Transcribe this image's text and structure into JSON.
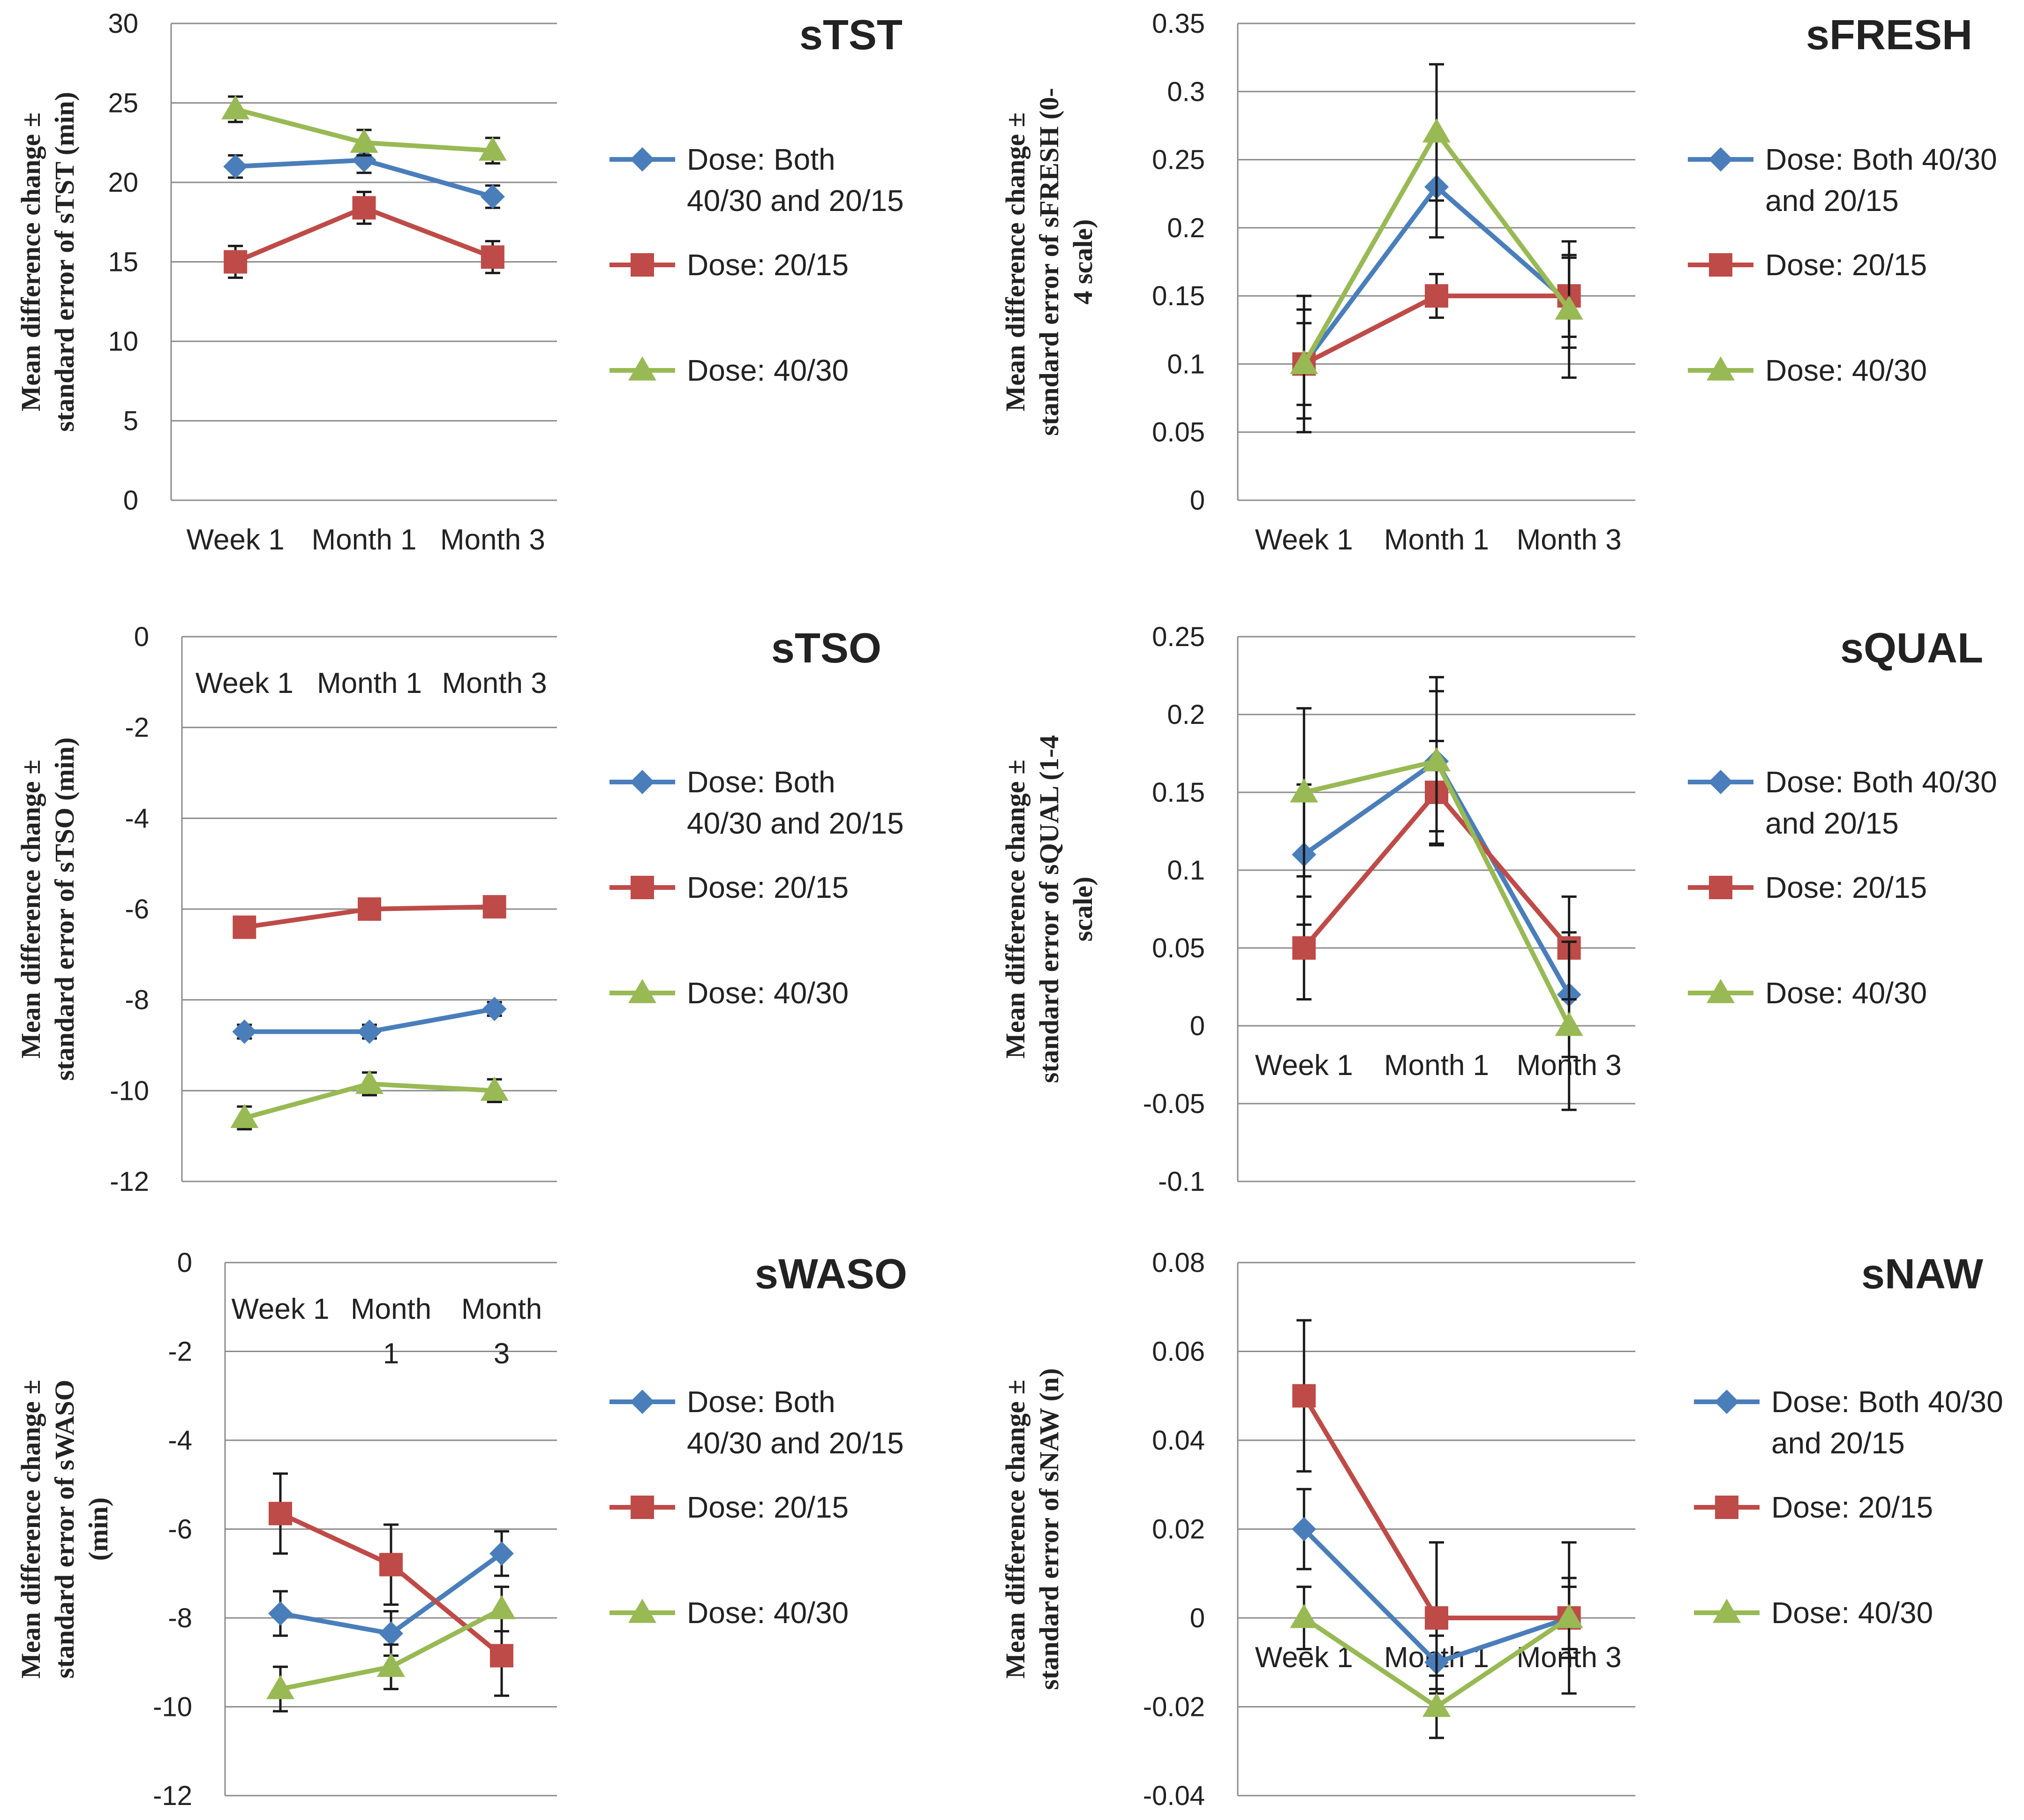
{
  "figure": {
    "series_colors": {
      "both": "#4a7ebb",
      "low": "#be4b48",
      "high": "#98b954"
    },
    "marker_names": {
      "both": "diamond",
      "low": "square",
      "high": "triangle"
    }
  },
  "chart_data": [
    {
      "type": "line",
      "title": "sTST",
      "ylabel_lines": [
        "Mean difference change ±",
        "standard error of sTST (min)"
      ],
      "categories": [
        "Week 1",
        "Month 1",
        "Month 3"
      ],
      "category_lines": [
        [
          "Week 1"
        ],
        [
          "Month 1"
        ],
        [
          "Month 3"
        ]
      ],
      "ylim": [
        0,
        30
      ],
      "yticks": [
        0,
        5,
        10,
        15,
        20,
        25,
        30
      ],
      "ytick_labels": [
        "0",
        "5",
        "10",
        "15",
        "20",
        "25",
        "30"
      ],
      "xlabels_at_top": false,
      "series": [
        {
          "name": "Dose: Both 40/30 and 20/15",
          "legend_lines": [
            "Dose: Both",
            "40/30 and 20/15"
          ],
          "key": "both",
          "values": [
            21.0,
            21.4,
            19.1
          ],
          "errors": [
            0.7,
            0.8,
            0.7
          ]
        },
        {
          "name": "Dose: 20/15",
          "legend_lines": [
            "Dose: 20/15"
          ],
          "key": "low",
          "values": [
            15.0,
            18.4,
            15.3
          ],
          "errors": [
            1.0,
            1.0,
            1.0
          ]
        },
        {
          "name": "Dose: 40/30",
          "legend_lines": [
            "Dose: 40/30"
          ],
          "key": "high",
          "values": [
            24.6,
            22.5,
            22.0
          ],
          "errors": [
            0.8,
            0.8,
            0.8
          ]
        }
      ]
    },
    {
      "type": "line",
      "title": "sFRESH",
      "ylabel_lines": [
        "Mean difference change ±",
        "standard error of sFRESH (0-",
        "4 scale)"
      ],
      "categories": [
        "Week 1",
        "Month 1",
        "Month 3"
      ],
      "category_lines": [
        [
          "Week 1"
        ],
        [
          "Month 1"
        ],
        [
          "Month 3"
        ]
      ],
      "ylim": [
        0,
        0.35
      ],
      "yticks": [
        0,
        0.05,
        0.1,
        0.15,
        0.2,
        0.25,
        0.3,
        0.35
      ],
      "ytick_labels": [
        "0",
        "0.05",
        "0.1",
        "0.15",
        "0.2",
        "0.25",
        "0.3",
        "0.35"
      ],
      "xlabels_at_top": false,
      "series": [
        {
          "name": "Dose: Both 40/30 and 20/15",
          "legend_lines": [
            "Dose: Both 40/30",
            "and 20/15"
          ],
          "key": "both",
          "values": [
            0.1,
            0.23,
            0.145
          ],
          "errors": [
            0.04,
            0.037,
            0.033
          ]
        },
        {
          "name": "Dose: 20/15",
          "legend_lines": [
            "Dose: 20/15"
          ],
          "key": "low",
          "values": [
            0.1,
            0.15,
            0.15
          ],
          "errors": [
            0.03,
            0.016,
            0.03
          ]
        },
        {
          "name": "Dose: 40/30",
          "legend_lines": [
            "Dose: 40/30"
          ],
          "key": "high",
          "values": [
            0.1,
            0.27,
            0.14
          ],
          "errors": [
            0.05,
            0.05,
            0.05
          ]
        }
      ]
    },
    {
      "type": "line",
      "title": "sTSO",
      "ylabel_lines": [
        "Mean difference change ±",
        "standard error of sTSO (min)"
      ],
      "categories": [
        "Week 1",
        "Month 1",
        "Month 3"
      ],
      "category_lines": [
        [
          "Week 1"
        ],
        [
          "Month 1"
        ],
        [
          "Month 3"
        ]
      ],
      "ylim": [
        -12,
        0
      ],
      "yticks": [
        -12,
        -10,
        -8,
        -6,
        -4,
        -2,
        0
      ],
      "ytick_labels": [
        "-12",
        "-10",
        "-8",
        "-6",
        "-4",
        "-2",
        "0"
      ],
      "xlabels_at_top": true,
      "series": [
        {
          "name": "Dose: Both 40/30 and 20/15",
          "legend_lines": [
            "Dose: Both",
            "40/30 and 20/15"
          ],
          "key": "both",
          "values": [
            -8.7,
            -8.7,
            -8.2
          ],
          "errors": [
            0.15,
            0.15,
            0.15
          ]
        },
        {
          "name": "Dose: 20/15",
          "legend_lines": [
            "Dose: 20/15"
          ],
          "key": "low",
          "values": [
            -6.4,
            -6.0,
            -5.95
          ],
          "errors": [
            0.15,
            0.15,
            0.15
          ]
        },
        {
          "name": "Dose: 40/30",
          "legend_lines": [
            "Dose: 40/30"
          ],
          "key": "high",
          "values": [
            -10.6,
            -9.85,
            -10.0
          ],
          "errors": [
            0.25,
            0.25,
            0.25
          ]
        }
      ]
    },
    {
      "type": "line",
      "title": "sQUAL",
      "ylabel_lines": [
        "Mean difference change ±",
        "standard error of sQUAL (1-4",
        "scale)"
      ],
      "categories": [
        "Week 1",
        "Month 1",
        "Month 3"
      ],
      "category_lines": [
        [
          "Week 1"
        ],
        [
          "Month 1"
        ],
        [
          "Month 3"
        ]
      ],
      "ylim": [
        -0.1,
        0.25
      ],
      "yticks": [
        -0.1,
        -0.05,
        0,
        0.05,
        0.1,
        0.15,
        0.2,
        0.25
      ],
      "ytick_labels": [
        "-0.1",
        "-0.05",
        "0",
        "0.05",
        "0.1",
        "0.15",
        "0.2",
        "0.25"
      ],
      "xlabels_at_top": false,
      "xlabel_value": 0,
      "series": [
        {
          "name": "Dose: Both 40/30 and 20/15",
          "legend_lines": [
            "Dose: Both 40/30",
            "and 20/15"
          ],
          "key": "both",
          "values": [
            0.11,
            0.17,
            0.02
          ],
          "errors": [
            0.045,
            0.045,
            0.04
          ]
        },
        {
          "name": "Dose: 20/15",
          "legend_lines": [
            "Dose: 20/15"
          ],
          "key": "low",
          "values": [
            0.05,
            0.15,
            0.05
          ],
          "errors": [
            0.033,
            0.033,
            0.033
          ]
        },
        {
          "name": "Dose: 40/30",
          "legend_lines": [
            "Dose: 40/30"
          ],
          "key": "high",
          "values": [
            0.15,
            0.17,
            0.0
          ],
          "errors": [
            0.054,
            0.054,
            0.054
          ]
        }
      ]
    },
    {
      "type": "line",
      "title": "sWASO",
      "ylabel_lines": [
        "Mean difference change ±",
        "standard error of sWASO",
        "(min)"
      ],
      "categories": [
        "Week 1",
        "Month 1",
        "Month 3"
      ],
      "category_lines": [
        [
          "Week 1"
        ],
        [
          "Month",
          "1"
        ],
        [
          "Month",
          "3"
        ]
      ],
      "ylim": [
        -12,
        0
      ],
      "yticks": [
        -12,
        -10,
        -8,
        -6,
        -4,
        -2,
        0
      ],
      "ytick_labels": [
        "-12",
        "-10",
        "-8",
        "-6",
        "-4",
        "-2",
        "0"
      ],
      "xlabels_at_top": true,
      "series": [
        {
          "name": "Dose: Both 40/30 and 20/15",
          "legend_lines": [
            "Dose: Both",
            "40/30 and 20/15"
          ],
          "key": "both",
          "values": [
            -7.9,
            -8.35,
            -6.55
          ],
          "errors": [
            0.5,
            0.5,
            0.5
          ]
        },
        {
          "name": "Dose: 20/15",
          "legend_lines": [
            "Dose: 20/15"
          ],
          "key": "low",
          "values": [
            -5.65,
            -6.8,
            -8.85
          ],
          "errors": [
            0.9,
            0.9,
            0.9
          ]
        },
        {
          "name": "Dose: 40/30",
          "legend_lines": [
            "Dose: 40/30"
          ],
          "key": "high",
          "values": [
            -9.6,
            -9.1,
            -7.8
          ],
          "errors": [
            0.5,
            0.5,
            0.5
          ]
        }
      ]
    },
    {
      "type": "line",
      "title": "sNAW",
      "ylabel_lines": [
        "Mean difference change ±",
        "standard error of sNAW (n)"
      ],
      "categories": [
        "Week 1",
        "Month 1",
        "Month 3"
      ],
      "category_lines": [
        [
          "Week 1"
        ],
        [
          "Month 1"
        ],
        [
          "Month 3"
        ]
      ],
      "ylim": [
        -0.04,
        0.08
      ],
      "yticks": [
        -0.04,
        -0.02,
        0,
        0.02,
        0.04,
        0.06,
        0.08
      ],
      "ytick_labels": [
        "-0.04",
        "-0.02",
        "0",
        "0.02",
        "0.04",
        "0.06",
        "0.08"
      ],
      "xlabels_at_top": false,
      "xlabel_value": 0,
      "series": [
        {
          "name": "Dose: Both 40/30 and 20/15",
          "legend_lines": [
            "Dose: Both 40/30",
            "and 20/15"
          ],
          "key": "both",
          "values": [
            0.02,
            -0.01,
            0.0
          ],
          "errors": [
            0.009,
            0.006,
            0.009
          ]
        },
        {
          "name": "Dose: 20/15",
          "legend_lines": [
            "Dose: 20/15"
          ],
          "key": "low",
          "values": [
            0.05,
            0.0,
            0.0
          ],
          "errors": [
            0.017,
            0.017,
            0.017
          ]
        },
        {
          "name": "Dose: 40/30",
          "legend_lines": [
            "Dose: 40/30"
          ],
          "key": "high",
          "values": [
            0.0,
            -0.02,
            0.0
          ],
          "errors": [
            0.007,
            0.007,
            0.007
          ]
        }
      ]
    }
  ]
}
